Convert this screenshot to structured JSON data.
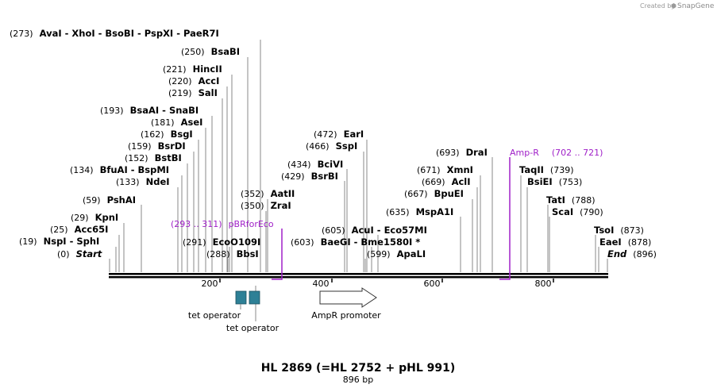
{
  "brand": {
    "created_by": "Created by",
    "product": "SnapGene"
  },
  "title": "HL 2869 (=HL 2752 + pHL 991)",
  "subtitle": "896 bp",
  "colors": {
    "feature": "#a020c8",
    "operator_box": "#2e8096",
    "line": "#000000",
    "leader": "#888888"
  },
  "ruler": {
    "total_bp": 896,
    "ticks": [
      "200",
      "400",
      "600",
      "800"
    ]
  },
  "sites": [
    {
      "pos": "(273)",
      "names": [
        "AvaI",
        "XhoI",
        "BsoBI",
        "PspXI",
        "PaeR7I"
      ]
    },
    {
      "pos": "(250)",
      "names": [
        "BsaBI"
      ]
    },
    {
      "pos": "(221)",
      "names": [
        "HincII"
      ]
    },
    {
      "pos": "(220)",
      "names": [
        "AccI"
      ]
    },
    {
      "pos": "(219)",
      "names": [
        "SalI"
      ]
    },
    {
      "pos": "(193)",
      "names": [
        "BsaAI",
        "SnaBI"
      ]
    },
    {
      "pos": "(181)",
      "names": [
        "AseI"
      ]
    },
    {
      "pos": "(162)",
      "names": [
        "BsgI"
      ]
    },
    {
      "pos": "(159)",
      "names": [
        "BsrDI"
      ]
    },
    {
      "pos": "(152)",
      "names": [
        "BstBI"
      ]
    },
    {
      "pos": "(134)",
      "names": [
        "BfuAI",
        "BspMI"
      ]
    },
    {
      "pos": "(133)",
      "names": [
        "NdeI"
      ]
    },
    {
      "pos": "(59)",
      "names": [
        "PshAI"
      ]
    },
    {
      "pos": "(29)",
      "names": [
        "KpnI"
      ]
    },
    {
      "pos": "(25)",
      "names": [
        "Acc65I"
      ]
    },
    {
      "pos": "(19)",
      "names": [
        "NspI",
        "SphI"
      ]
    },
    {
      "pos": "(0)",
      "names": [
        "Start"
      ]
    },
    {
      "pos": "(291)",
      "names": [
        "EcoO109I"
      ]
    },
    {
      "pos": "(288)",
      "names": [
        "BbsI"
      ]
    },
    {
      "pos": "(352)",
      "names": [
        "AatII"
      ]
    },
    {
      "pos": "(350)",
      "names": [
        "ZraI"
      ]
    },
    {
      "pos": "(472)",
      "names": [
        "EarI"
      ]
    },
    {
      "pos": "(466)",
      "names": [
        "SspI"
      ]
    },
    {
      "pos": "(434)",
      "names": [
        "BciVI"
      ]
    },
    {
      "pos": "(429)",
      "names": [
        "BsrBI"
      ]
    },
    {
      "pos": "(605)",
      "names": [
        "AcuI",
        "Eco57MI"
      ]
    },
    {
      "pos": "(603)",
      "names": [
        "BaeGI",
        "Bme1580I *"
      ]
    },
    {
      "pos": "(599)",
      "names": [
        "ApaLI"
      ]
    },
    {
      "pos": "(693)",
      "names": [
        "DraI"
      ]
    },
    {
      "pos": "(671)",
      "names": [
        "XmnI"
      ]
    },
    {
      "pos": "(669)",
      "names": [
        "AclI"
      ]
    },
    {
      "pos": "(667)",
      "names": [
        "BpuEI"
      ]
    },
    {
      "pos": "(635)",
      "names": [
        "MspA1I"
      ]
    },
    {
      "pos": "(739)",
      "names": [
        "TaqII"
      ]
    },
    {
      "pos": "(753)",
      "names": [
        "BsiEI"
      ]
    },
    {
      "pos": "(788)",
      "names": [
        "TatI"
      ]
    },
    {
      "pos": "(790)",
      "names": [
        "ScaI"
      ]
    },
    {
      "pos": "(873)",
      "names": [
        "TsoI"
      ]
    },
    {
      "pos": "(878)",
      "names": [
        "EaeI"
      ]
    },
    {
      "pos": "(896)",
      "names": [
        "End"
      ]
    }
  ],
  "primers": [
    {
      "name": "pBRforEco",
      "range": "(293 .. 311)"
    },
    {
      "name": "Amp-R",
      "range": "(702 .. 721)"
    }
  ],
  "features": [
    {
      "name": "tet operator"
    },
    {
      "name": "tet operator"
    },
    {
      "name": "AmpR promoter"
    }
  ]
}
